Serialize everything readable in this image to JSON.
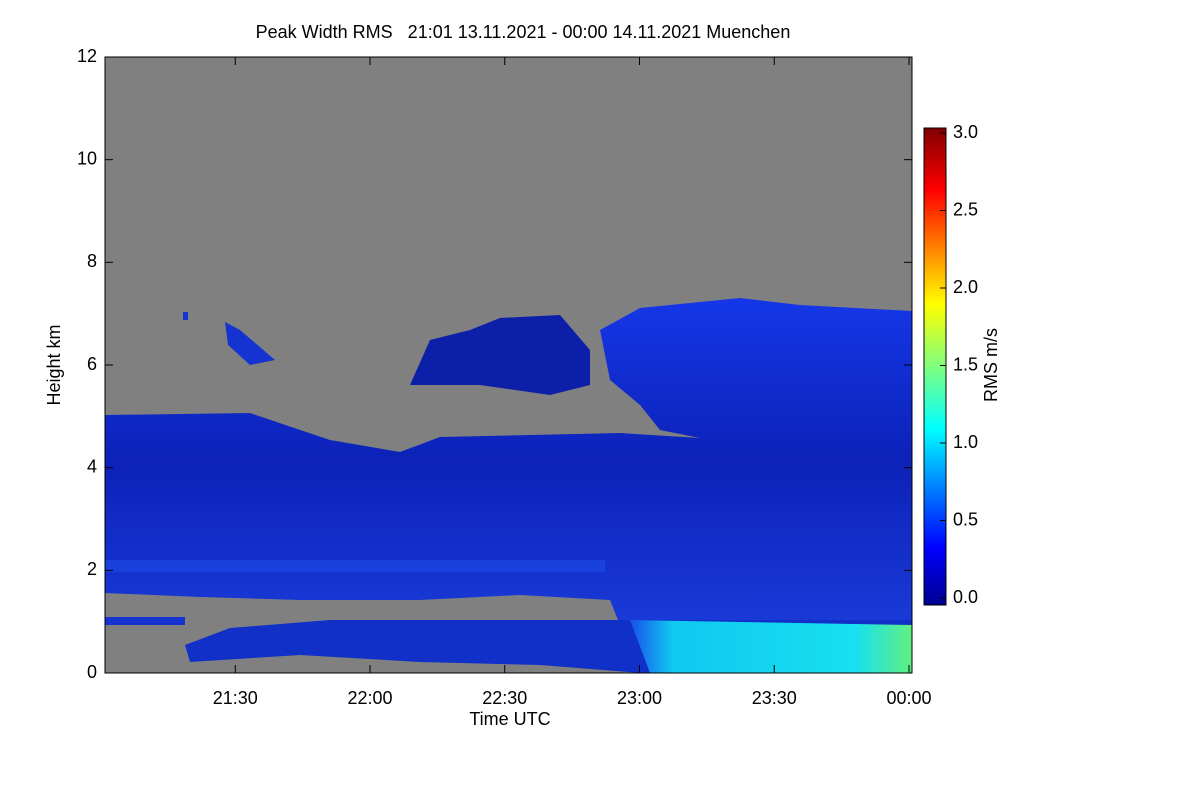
{
  "chart_data": {
    "type": "time-height",
    "title": "Peak Width RMS   21:01 13.11.2021 - 00:00 14.11.2021 Muenchen",
    "x_label": "Time UTC",
    "y_label": "Height km",
    "xlim": [
      "21:01",
      "00:00"
    ],
    "xticks": [
      "21:30",
      "22:00",
      "22:30",
      "23:00",
      "23:30",
      "00:00"
    ],
    "ylim": [
      0,
      12
    ],
    "yticks": [
      0,
      2,
      4,
      6,
      8,
      10,
      12
    ],
    "colorbar": {
      "label": "RMS m/s",
      "lim": [
        0,
        3
      ],
      "ticks": [
        {
          "value": 0,
          "label": "0.0"
        },
        {
          "value": 0.5,
          "label": "0.5"
        },
        {
          "value": 1,
          "label": "1.0"
        },
        {
          "value": 1.5,
          "label": "1.5"
        },
        {
          "value": 2,
          "label": "2.0"
        },
        {
          "value": 2.5,
          "label": "2.5"
        },
        {
          "value": 3,
          "label": "3.0"
        }
      ]
    }
  }
}
